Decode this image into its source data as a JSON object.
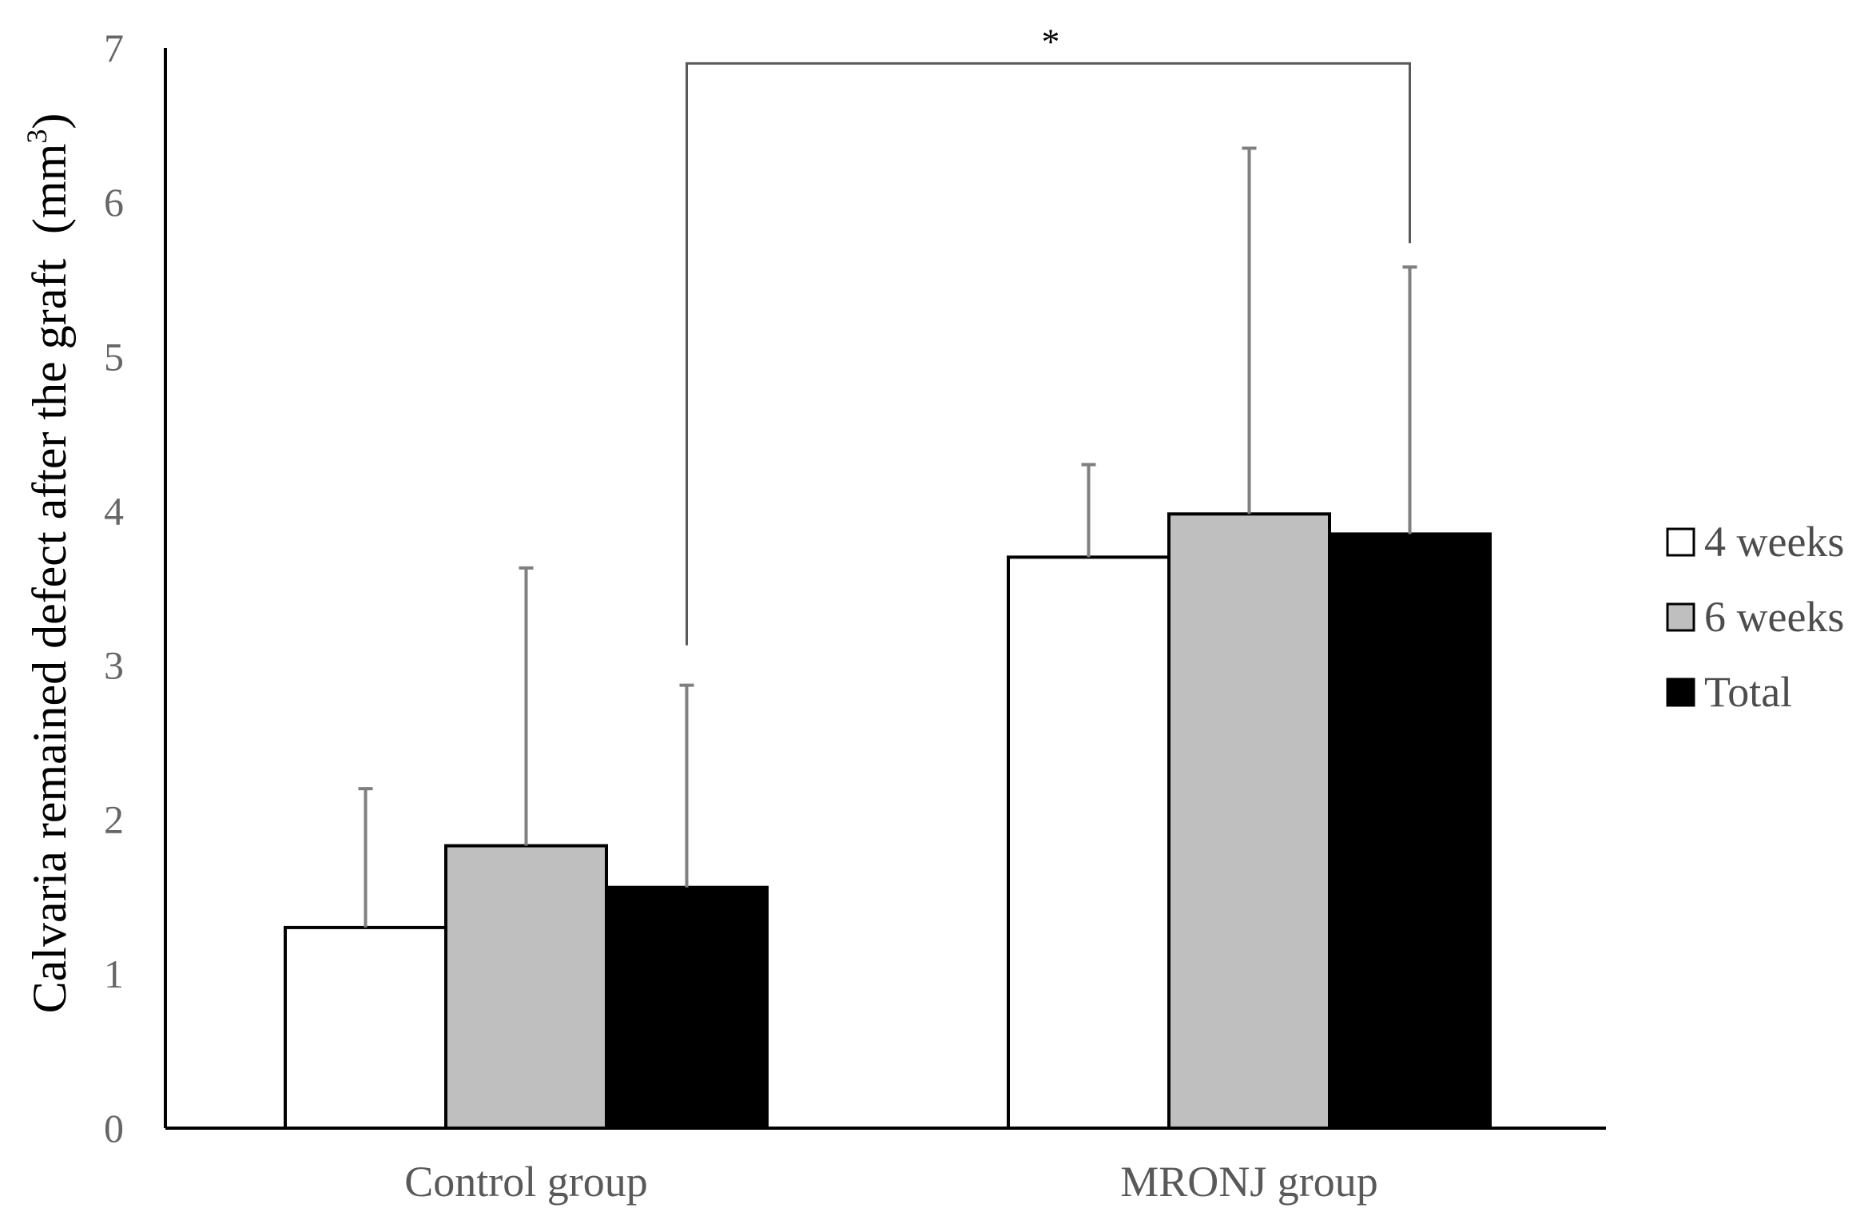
{
  "chart_data": {
    "type": "bar",
    "ylabel": "Calvaria remained defect after the graft",
    "ylabel_unit": "(mm",
    "ylabel_unit_sup": "3",
    "ylabel_unit_close": ")",
    "xlabel": "",
    "ylim": [
      0,
      7
    ],
    "yticks": [
      "0",
      "1",
      "2",
      "3",
      "4",
      "5",
      "6",
      "7"
    ],
    "grid": false,
    "legend_position": "right",
    "categories": [
      "Control group",
      "MRONJ group"
    ],
    "series": [
      {
        "name": "4 weeks",
        "color": "#ffffff",
        "values": [
          1.3,
          3.7
        ],
        "error": [
          0.9,
          0.6
        ]
      },
      {
        "name": "6 weeks",
        "color": "#bfbfbf",
        "values": [
          1.83,
          3.98
        ],
        "error": [
          1.8,
          2.37
        ]
      },
      {
        "name": "Total",
        "color": "#000000",
        "values": [
          1.56,
          3.85
        ],
        "error": [
          1.31,
          1.73
        ]
      }
    ],
    "annotation": {
      "text": "*",
      "from": {
        "category": 0,
        "series": 2
      },
      "to": {
        "category": 1,
        "series": 2
      },
      "bracket_y": 6.9
    }
  }
}
